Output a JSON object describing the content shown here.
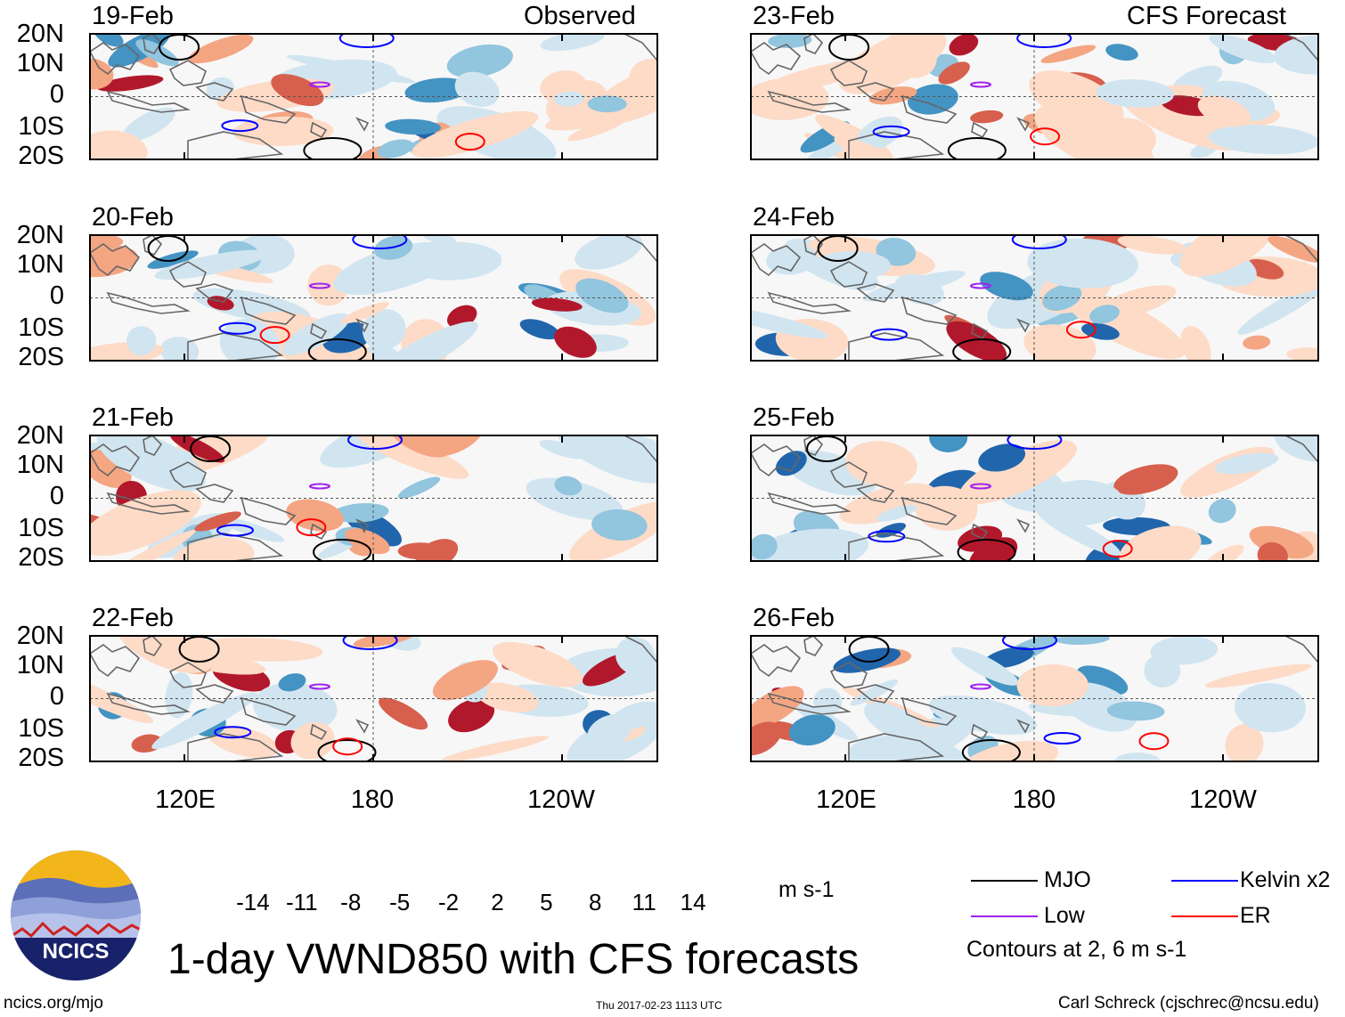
{
  "headers": {
    "observed": "Observed",
    "forecast": "CFS Forecast"
  },
  "panels": [
    {
      "date": "19-Feb"
    },
    {
      "date": "20-Feb"
    },
    {
      "date": "21-Feb"
    },
    {
      "date": "22-Feb"
    },
    {
      "date": "23-Feb"
    },
    {
      "date": "24-Feb"
    },
    {
      "date": "25-Feb"
    },
    {
      "date": "26-Feb"
    }
  ],
  "lat_ticks": [
    "20N",
    "10N",
    "0",
    "10S",
    "20S"
  ],
  "lon_ticks": [
    "120E",
    "180",
    "120W"
  ],
  "colorbar": {
    "ticks": [
      "-14",
      "-11",
      "-8",
      "-5",
      "-2",
      "2",
      "5",
      "8",
      "11",
      "14"
    ],
    "units": "m s-1",
    "colors": [
      "#0e3a66",
      "#2166ac",
      "#4393c3",
      "#92c5de",
      "#d1e5f0",
      "#f7f7f7",
      "#fddbc7",
      "#f4a582",
      "#d6604d",
      "#b2182b",
      "#67001f"
    ]
  },
  "legend": {
    "items": [
      {
        "label": "MJO",
        "color": "#000000"
      },
      {
        "label": "Kelvin x2",
        "color": "#0000ff"
      },
      {
        "label": "Low",
        "color": "#a020f0"
      },
      {
        "label": "ER",
        "color": "#ff0000"
      }
    ],
    "contours_note": "Contours at 2, 6 m s-1"
  },
  "title": "1-day VWND850 with CFS forecasts",
  "logo_text": "NCICS",
  "footer": {
    "left": "ncics.org/mjo",
    "center": "Thu 2017-02-23 1113 UTC",
    "right": "Carl Schreck (cjschrec@ncsu.edu)"
  }
}
